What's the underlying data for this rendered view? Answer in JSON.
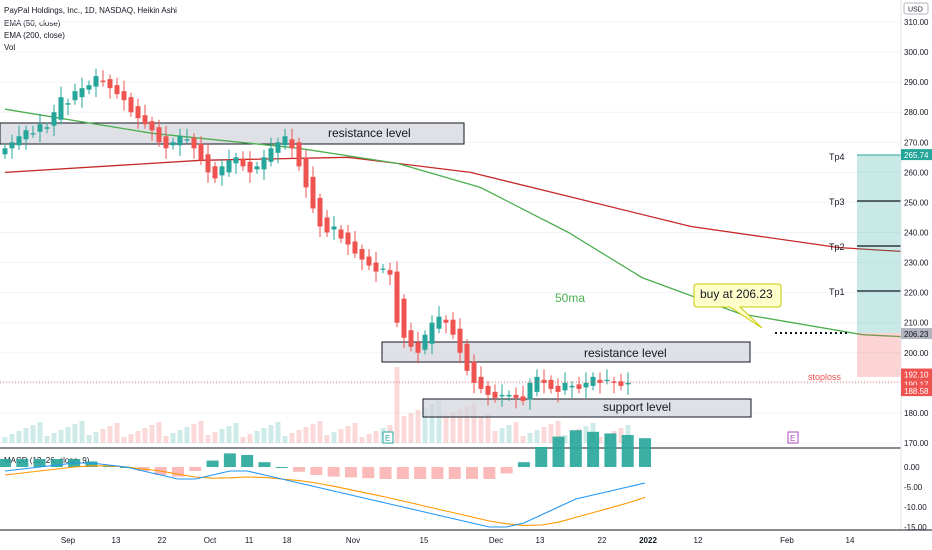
{
  "legend": {
    "title": "PayPal Holdings, Inc., 1D, NASDAQ, Heikin Ashi",
    "ema50": "EMA (50, close)",
    "ema200": "EMA (200, close)",
    "vol": "Vol"
  },
  "currency": "USD",
  "macd_legend": "MACD (12, 26, close, 9)",
  "colors": {
    "up": "#26a69a",
    "down": "#ef5350",
    "ema50": "#4caf50",
    "ema200": "#c62828",
    "macd": "#2196f3",
    "signal": "#ff9800"
  },
  "price_axis": [
    "310.00",
    "300.00",
    "290.00",
    "280.00",
    "270.00",
    "260.00",
    "250.00",
    "240.00",
    "230.00",
    "220.00",
    "210.00",
    "200.00",
    "190.00",
    "180.00",
    "170.00"
  ],
  "price_tags": {
    "tp": "265.74",
    "entry": "206.23",
    "last": "192.10",
    "close": "190.17",
    "stop": "188.58"
  },
  "macd_axis": [
    "0.00",
    "-5.00",
    "-10.00",
    "-15.00"
  ],
  "time_axis": [
    "Sep",
    "13",
    "22",
    "Oct",
    "11",
    "18",
    "Nov",
    "15",
    "Dec",
    "13",
    "22",
    "2022",
    "12",
    "Feb",
    "14"
  ],
  "annotations": {
    "resistance_upper": "resistance level",
    "resistance_lower": "resistance level",
    "support": "support level",
    "ma_label": "50ma",
    "buy_callout": "buy at 206.23",
    "stoploss": "stoploss",
    "tp4": "Tp4",
    "tp3": "Tp3",
    "tp2": "Tp2",
    "tp1": "Tp1",
    "event_E1": "E",
    "event_E2": "E"
  },
  "chart_data": {
    "type": "candlestick",
    "style": "Heikin Ashi",
    "symbol": "PayPal Holdings, Inc., NASDAQ",
    "interval": "1D",
    "ylim": [
      167,
      315
    ],
    "closes": [
      268,
      270,
      272,
      274,
      273,
      276,
      275,
      280,
      285,
      283,
      287,
      288,
      289,
      292,
      290,
      288,
      286,
      284,
      280,
      278,
      276,
      274,
      270,
      268,
      270,
      272,
      271,
      268,
      264,
      260,
      258,
      262,
      264,
      265,
      262,
      260,
      262,
      265,
      268,
      270,
      272,
      268,
      262,
      255,
      248,
      242,
      240,
      242,
      238,
      236,
      233,
      231,
      229,
      227,
      228,
      226,
      210,
      205,
      202,
      200,
      206,
      210,
      212,
      210,
      206,
      200,
      194,
      190,
      188,
      186,
      185,
      186,
      186,
      185,
      184,
      190,
      192,
      190,
      188,
      187,
      190,
      189,
      188,
      190,
      192,
      190,
      191,
      190,
      189,
      190
    ],
    "ema50": [
      [
        0,
        281
      ],
      [
        30,
        273
      ],
      [
        60,
        268
      ],
      [
        80,
        263
      ],
      [
        97,
        255
      ],
      [
        115,
        240
      ],
      [
        130,
        225
      ],
      [
        150,
        213
      ],
      [
        175,
        206
      ],
      [
        200,
        204
      ]
    ],
    "ema200": [
      [
        0,
        260
      ],
      [
        40,
        264
      ],
      [
        70,
        265
      ],
      [
        95,
        260
      ],
      [
        115,
        252
      ],
      [
        140,
        242
      ],
      [
        170,
        235
      ],
      [
        200,
        232
      ]
    ],
    "levels": {
      "resistance_upper": [
        270,
        274
      ],
      "resistance_lower": [
        198,
        202
      ],
      "support": [
        179,
        182
      ],
      "entry": 206.23,
      "stop": 188.58,
      "targets": [
        220,
        235,
        250,
        265.74
      ]
    },
    "macd": [
      -1,
      -0.5,
      0,
      0.5,
      1,
      1,
      0.5,
      0,
      -1,
      -2,
      -3,
      -3,
      -2,
      -1,
      -1,
      -2,
      -3,
      -4,
      -5,
      -6,
      -7,
      -8,
      -9,
      -10,
      -11,
      -12,
      -13,
      -14,
      -15,
      -15,
      -14,
      -12,
      -10,
      -8,
      -7,
      -6,
      -5,
      -4
    ],
    "signal": [
      -2,
      -1.5,
      -1,
      -0.5,
      0,
      0.3,
      0.3,
      0,
      -0.5,
      -1,
      -1.8,
      -2.5,
      -2.8,
      -2.7,
      -2.5,
      -2.6,
      -3,
      -3.4,
      -4,
      -4.8,
      -5.7,
      -6.6,
      -7.5,
      -8.5,
      -9.5,
      -10.5,
      -11.5,
      -12.5,
      -13.5,
      -14.2,
      -14.6,
      -14.5,
      -13.8,
      -12.6,
      -11.4,
      -10.2,
      -9,
      -7.6
    ]
  }
}
